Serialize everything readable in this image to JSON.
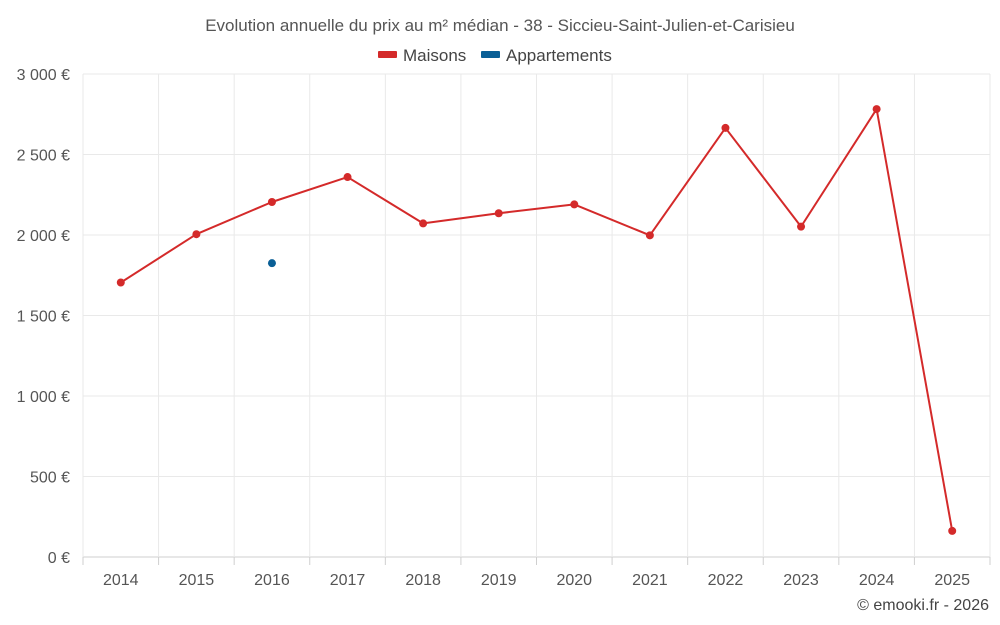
{
  "chart_data": {
    "type": "line",
    "title": "Evolution annuelle du prix au m² médian - 38 - Siccieu-Saint-Julien-et-Carisieu",
    "categories": [
      "2014",
      "2015",
      "2016",
      "2017",
      "2018",
      "2019",
      "2020",
      "2021",
      "2022",
      "2023",
      "2024",
      "2025"
    ],
    "series": [
      {
        "name": "Maisons",
        "color": "#d42a2a",
        "values": [
          1705,
          2005,
          2205,
          2360,
          2072,
          2135,
          2190,
          1998,
          2665,
          2052,
          2782,
          162
        ]
      },
      {
        "name": "Appartements",
        "color": "#0a5f96",
        "values": [
          null,
          null,
          1825,
          null,
          null,
          null,
          null,
          null,
          null,
          null,
          null,
          null
        ]
      }
    ],
    "ylim": [
      0,
      3000
    ],
    "yticks": [
      0,
      500,
      1000,
      1500,
      2000,
      2500,
      3000
    ],
    "ytick_labels": [
      "0 €",
      "500 €",
      "1 000 €",
      "1 500 €",
      "2 000 €",
      "2 500 €",
      "3 000 €"
    ],
    "xlabel": "",
    "ylabel": "",
    "legend_position": "top-center",
    "grid": true
  },
  "credit": "© emooki.fr - 2026"
}
